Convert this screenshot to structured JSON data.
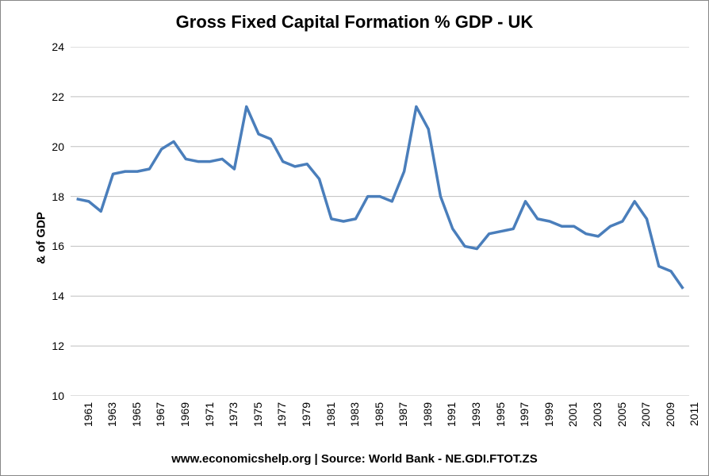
{
  "chart": {
    "type": "line",
    "title": "Gross Fixed Capital Formation % GDP - UK",
    "ylabel": "& of GDP",
    "footer": "www.economicshelp.org | Source: World Bank - NE.GDI.FTOT.ZS",
    "title_fontsize": 22,
    "label_fontsize": 15,
    "tick_fontsize": 14,
    "background_color": "#ffffff",
    "border_color": "#888888",
    "grid_color": "#bfbfbf",
    "tick_color": "#808080",
    "line_color": "#4a7ebb",
    "line_width": 3.5,
    "ylim": [
      10,
      24
    ],
    "ytick_step": 2,
    "yticks": [
      10,
      12,
      14,
      16,
      18,
      20,
      22,
      24
    ],
    "xticks": [
      1961,
      1963,
      1965,
      1967,
      1969,
      1971,
      1973,
      1975,
      1977,
      1979,
      1981,
      1983,
      1985,
      1987,
      1989,
      1991,
      1993,
      1995,
      1997,
      1999,
      2001,
      2003,
      2005,
      2007,
      2009,
      2011
    ],
    "years": [
      1961,
      1962,
      1963,
      1964,
      1965,
      1966,
      1967,
      1968,
      1969,
      1970,
      1971,
      1972,
      1973,
      1974,
      1975,
      1976,
      1977,
      1978,
      1979,
      1980,
      1981,
      1982,
      1983,
      1984,
      1985,
      1986,
      1987,
      1988,
      1989,
      1990,
      1991,
      1992,
      1993,
      1994,
      1995,
      1996,
      1997,
      1998,
      1999,
      2000,
      2001,
      2002,
      2003,
      2004,
      2005,
      2006,
      2007,
      2008,
      2009,
      2010,
      2011
    ],
    "values": [
      17.9,
      17.8,
      17.4,
      18.9,
      19.0,
      19.0,
      19.1,
      19.9,
      20.2,
      19.5,
      19.4,
      19.4,
      19.5,
      19.1,
      21.6,
      20.5,
      20.3,
      19.4,
      19.2,
      19.3,
      18.7,
      17.1,
      17.0,
      17.1,
      18.0,
      18.0,
      17.8,
      19.0,
      21.6,
      20.7,
      18.0,
      16.7,
      16.0,
      15.9,
      16.5,
      16.6,
      16.7,
      17.8,
      17.1,
      17.0,
      16.8,
      16.8,
      16.5,
      16.4,
      16.8,
      17.0,
      17.8,
      17.1,
      15.2,
      15.0,
      14.3
    ]
  }
}
